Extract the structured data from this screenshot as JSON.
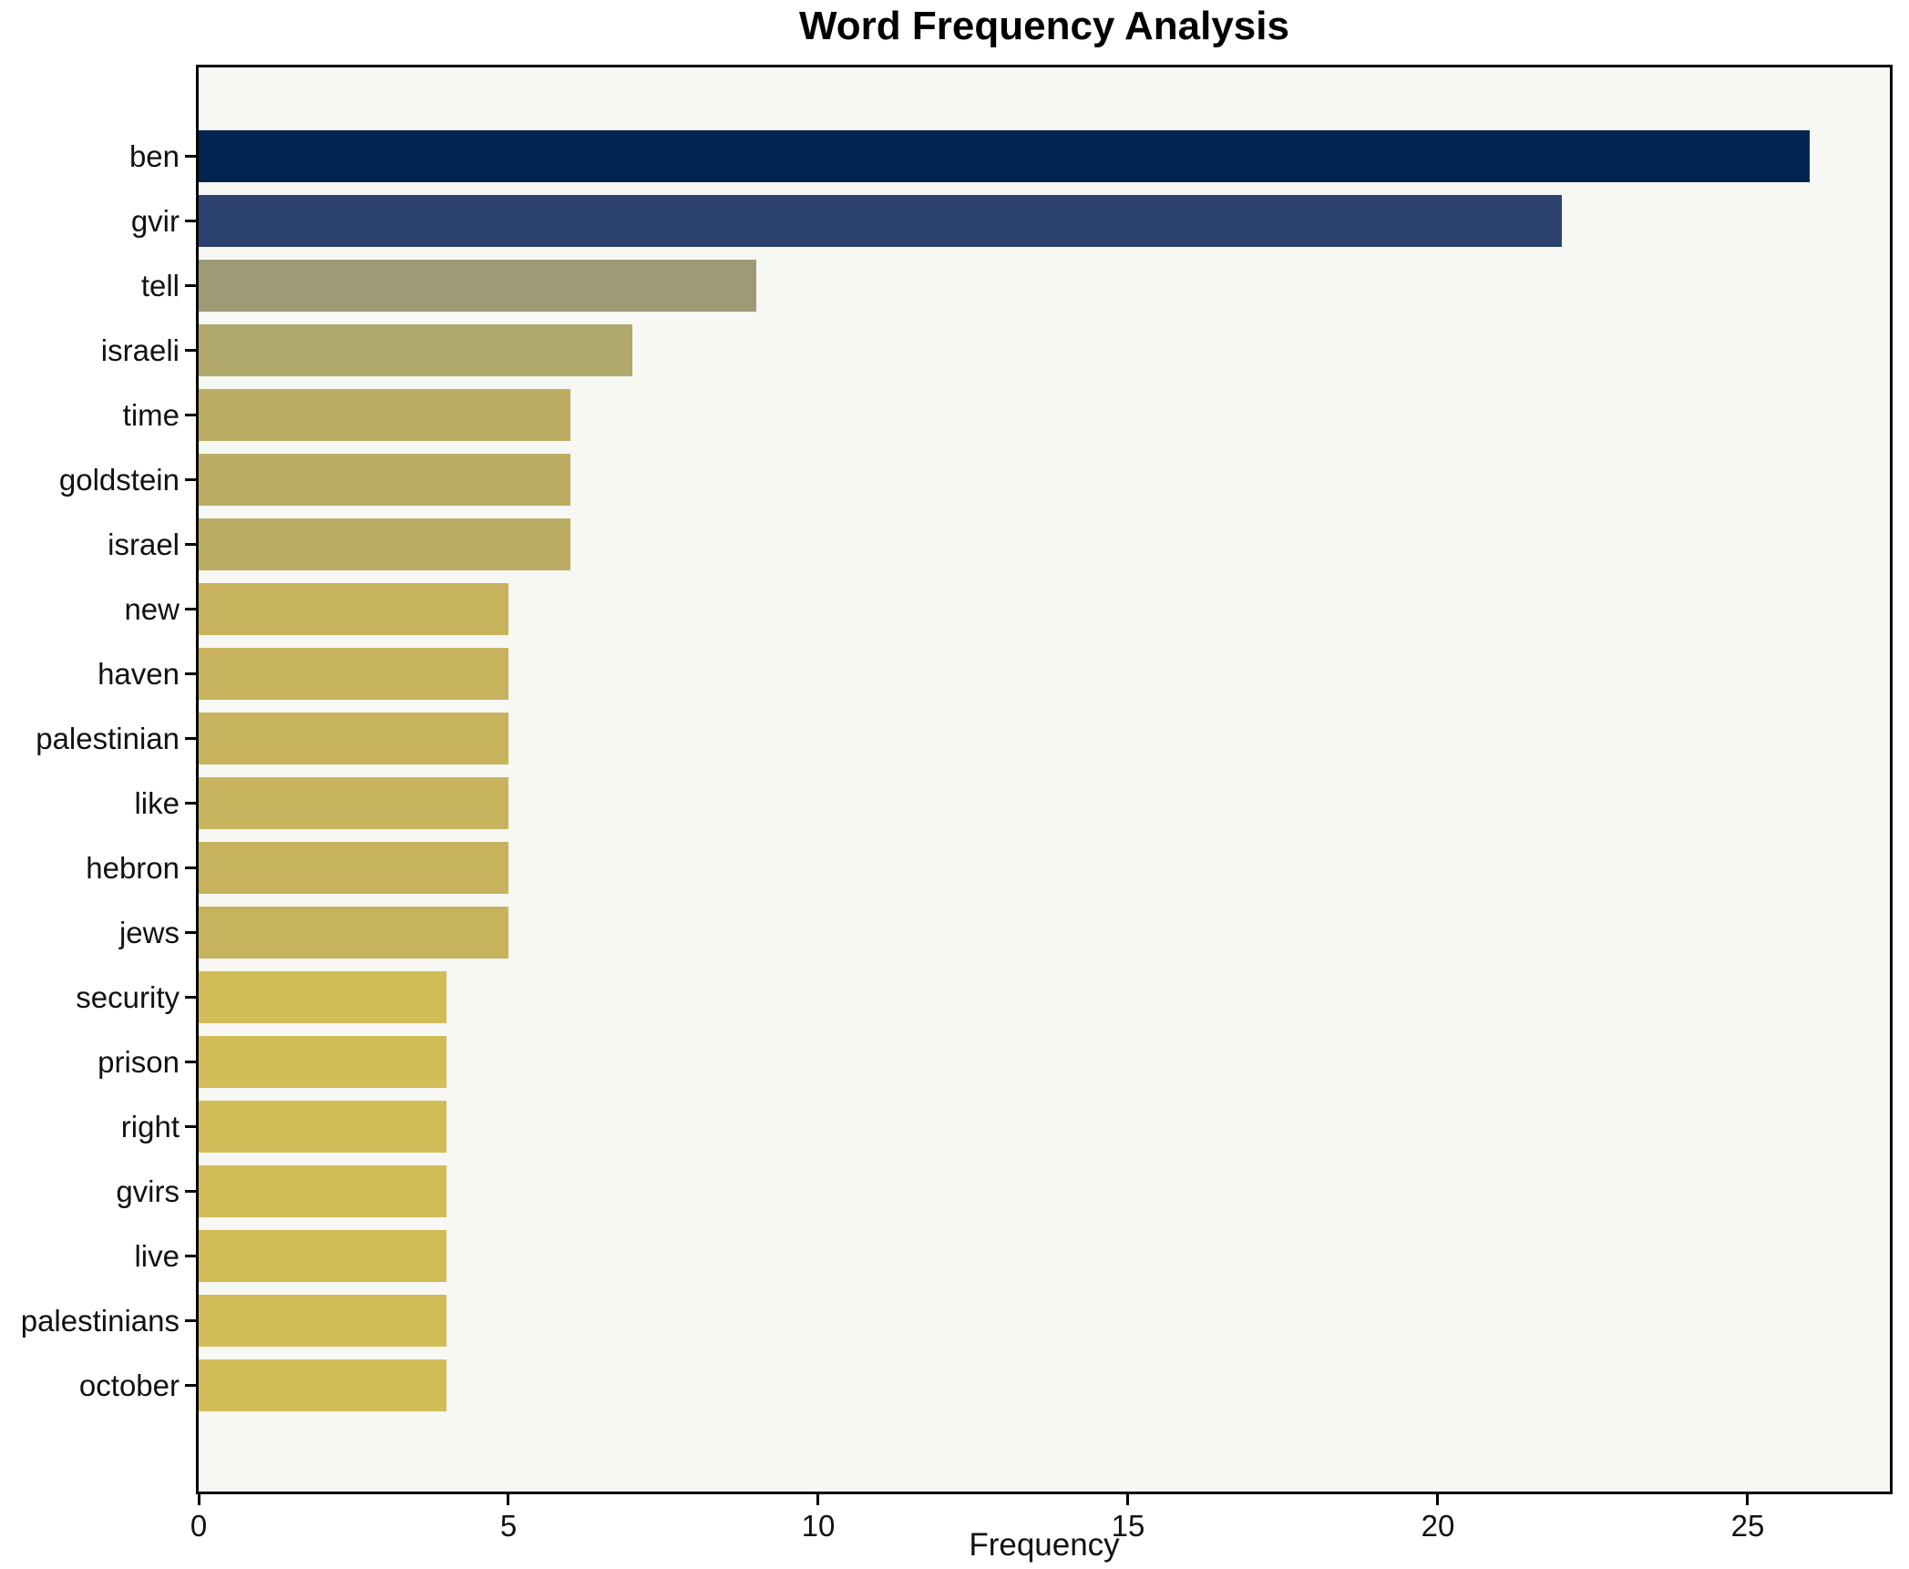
{
  "title": "Word Frequency Analysis",
  "colors": {
    "figure_background": "#ffffff",
    "plot_background": "#f7f7f4",
    "axis": "#000000",
    "text": "#111111"
  },
  "chart_data": {
    "type": "bar",
    "orientation": "horizontal",
    "title": "Word Frequency Analysis",
    "xlabel": "Frequency",
    "ylabel": "",
    "categories": [
      "ben",
      "gvir",
      "tell",
      "israeli",
      "time",
      "goldstein",
      "israel",
      "new",
      "haven",
      "palestinian",
      "like",
      "hebron",
      "jews",
      "security",
      "prison",
      "right",
      "gvirs",
      "live",
      "palestinians",
      "october"
    ],
    "values": [
      26,
      22,
      9,
      7,
      6,
      6,
      6,
      5,
      5,
      5,
      5,
      5,
      5,
      4,
      4,
      4,
      4,
      4,
      4,
      4
    ],
    "bar_colors": [
      "#022451",
      "#2c4371",
      "#9e9a78",
      "#b1a86c",
      "#bcad64",
      "#bcad64",
      "#bcad64",
      "#c7b35e",
      "#c7b35e",
      "#c7b35e",
      "#c7b35e",
      "#c7b35e",
      "#c7b35e",
      "#d2bc58",
      "#d2bc58",
      "#d2bc58",
      "#d2bc58",
      "#d2bc58",
      "#d2bc58",
      "#d2bc58"
    ],
    "xlim": [
      0,
      27.3
    ],
    "x_ticks": [
      0,
      5,
      10,
      15,
      20,
      25
    ],
    "grid": false,
    "legend": null
  }
}
